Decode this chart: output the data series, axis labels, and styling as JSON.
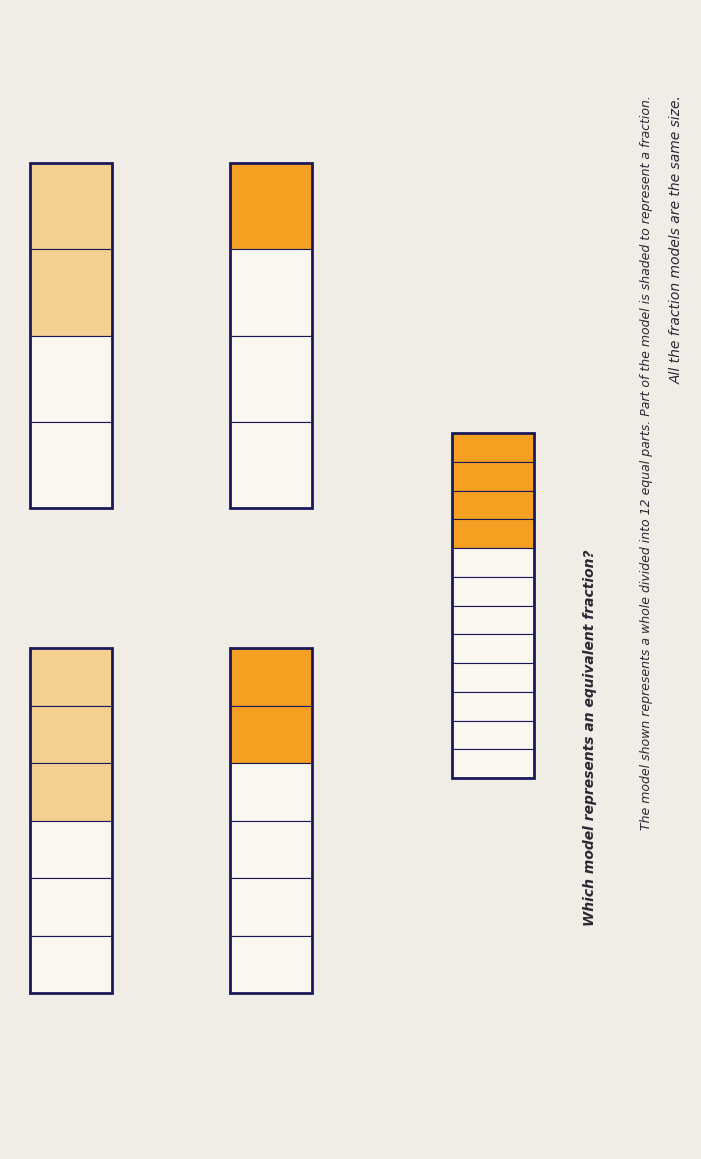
{
  "background_color": "#cdc8c2",
  "paper_color": "#f0ece6",
  "text_color": "#2a2832",
  "title_line1": "All the fraction models are the same size.",
  "title_line2": "The model shown represents a whole divided into 12 equal parts. Part of the model is shaded to represent a fraction.",
  "question": "Which model represents an equivalent fraction?",
  "shaded_orange": "#f5a020",
  "shaded_light": "#f5d090",
  "unshaded_color": "#faf6f0",
  "border_color": "#1a1a5a",
  "reference_model": {
    "total_parts": 12,
    "shaded_parts": 4
  },
  "answer_models": [
    {
      "total_parts": 4,
      "shaded_parts": 2,
      "shade": "light"
    },
    {
      "total_parts": 4,
      "shaded_parts": 1,
      "shade": "orange"
    },
    {
      "total_parts": 6,
      "shaded_parts": 3,
      "shade": "light"
    },
    {
      "total_parts": 6,
      "shaded_parts": 2,
      "shade": "orange"
    }
  ]
}
